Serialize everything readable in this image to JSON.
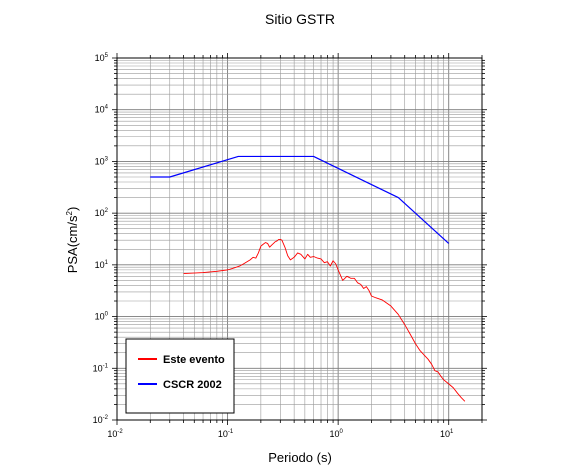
{
  "chart_data": {
    "type": "line",
    "title": "Sitio GSTR",
    "xlabel": "Periodo (s)",
    "ylabel": {
      "main": "PSA(cm/s",
      "sup": "2",
      "close": ")"
    },
    "xscale": "log",
    "yscale": "log",
    "xlim": [
      0.01,
      20
    ],
    "ylim": [
      0.01,
      100000
    ],
    "grid": true,
    "legend_position": "bottom-left",
    "x_ticks": [
      {
        "value": 0.01,
        "base": "10",
        "exp": "-2"
      },
      {
        "value": 0.1,
        "base": "10",
        "exp": "-1"
      },
      {
        "value": 1,
        "base": "10",
        "exp": "0"
      },
      {
        "value": 10,
        "base": "10",
        "exp": "1"
      }
    ],
    "y_ticks": [
      {
        "value": 0.01,
        "base": "10",
        "exp": "-2"
      },
      {
        "value": 0.1,
        "base": "10",
        "exp": "-1"
      },
      {
        "value": 1,
        "base": "10",
        "exp": "0"
      },
      {
        "value": 10,
        "base": "10",
        "exp": "1"
      },
      {
        "value": 100,
        "base": "10",
        "exp": "2"
      },
      {
        "value": 1000,
        "base": "10",
        "exp": "3"
      },
      {
        "value": 10000,
        "base": "10",
        "exp": "4"
      },
      {
        "value": 100000,
        "base": "10",
        "exp": "5"
      }
    ],
    "series": [
      {
        "name": "Este evento",
        "color": "#ff0000",
        "x": [
          0.04,
          0.06,
          0.08,
          0.1,
          0.11,
          0.12,
          0.13,
          0.14,
          0.15,
          0.16,
          0.17,
          0.18,
          0.19,
          0.2,
          0.21,
          0.22,
          0.23,
          0.24,
          0.25,
          0.26,
          0.27,
          0.28,
          0.29,
          0.3,
          0.31,
          0.33,
          0.35,
          0.37,
          0.4,
          0.43,
          0.46,
          0.5,
          0.53,
          0.56,
          0.6,
          0.65,
          0.7,
          0.75,
          0.8,
          0.85,
          0.9,
          0.95,
          1.0,
          1.1,
          1.2,
          1.3,
          1.4,
          1.5,
          1.6,
          1.7,
          1.8,
          1.9,
          2.0,
          2.2,
          2.5,
          3.0,
          3.5,
          4.0,
          4.5,
          5.0,
          5.5,
          6.0,
          6.5,
          7.0,
          7.5,
          8.0,
          8.5,
          9.0,
          10.0,
          11.0,
          12.0,
          13.0,
          14.0
        ],
        "y": [
          6.8,
          7.1,
          7.5,
          8.0,
          8.5,
          9.0,
          9.6,
          10.5,
          11.5,
          12.5,
          14.0,
          13.5,
          17.0,
          23.0,
          25.0,
          27.0,
          26.0,
          22.0,
          24.0,
          26.0,
          28.0,
          29.0,
          31.0,
          31.0,
          30.0,
          22.0,
          15.0,
          12.5,
          14.0,
          17.0,
          16.0,
          13.0,
          16.0,
          14.0,
          14.5,
          13.5,
          13.0,
          11.0,
          11.5,
          9.5,
          12.0,
          10.5,
          8.0,
          5.0,
          6.0,
          5.5,
          5.5,
          4.5,
          4.2,
          3.5,
          3.8,
          3.2,
          2.5,
          2.3,
          2.1,
          1.6,
          1.1,
          0.7,
          0.45,
          0.3,
          0.22,
          0.18,
          0.15,
          0.12,
          0.09,
          0.085,
          0.07,
          0.06,
          0.05,
          0.042,
          0.033,
          0.027,
          0.023
        ]
      },
      {
        "name": "CSCR 2002",
        "color": "#0000ff",
        "x": [
          0.02,
          0.03,
          0.125,
          0.6,
          3.5,
          10.0
        ],
        "y": [
          500,
          500,
          1250,
          1250,
          200,
          26
        ]
      }
    ]
  }
}
